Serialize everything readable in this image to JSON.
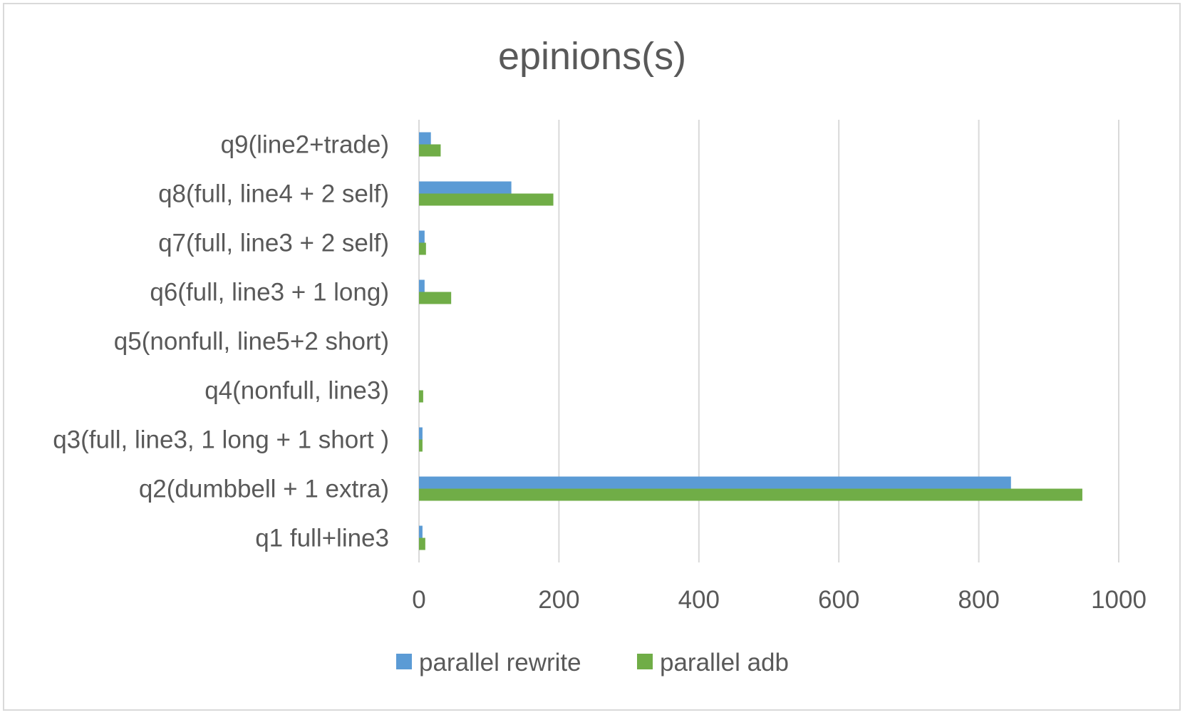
{
  "chart_data": {
    "type": "bar",
    "orientation": "horizontal",
    "title": "epinions(s)",
    "xlabel": "",
    "ylabel": "",
    "categories": [
      "q1 full+line3",
      "q2(dumbbell + 1 extra)",
      "q3(full, line3, 1 long + 1 short )",
      "q4(nonfull, line3)",
      "q5(nonfull, line5+2 short)",
      "q6(full, line3 + 1 long)",
      "q7(full, line3 + 2 self)",
      "q8(full, line4 + 2 self)",
      "q9(line2+trade)"
    ],
    "series": [
      {
        "name": "parallel rewrite",
        "color": "#5b9bd5",
        "values": [
          5,
          846,
          5,
          0,
          0,
          8,
          8,
          132,
          17
        ]
      },
      {
        "name": "parallel adb",
        "color": "#70ad47",
        "values": [
          9,
          948,
          5,
          6,
          0,
          46,
          10,
          192,
          31
        ]
      }
    ],
    "xlim": [
      0,
      1000
    ],
    "xticks": [
      "0",
      "200",
      "400",
      "600",
      "800",
      "1000"
    ],
    "grid": true,
    "legend_position": "bottom"
  }
}
